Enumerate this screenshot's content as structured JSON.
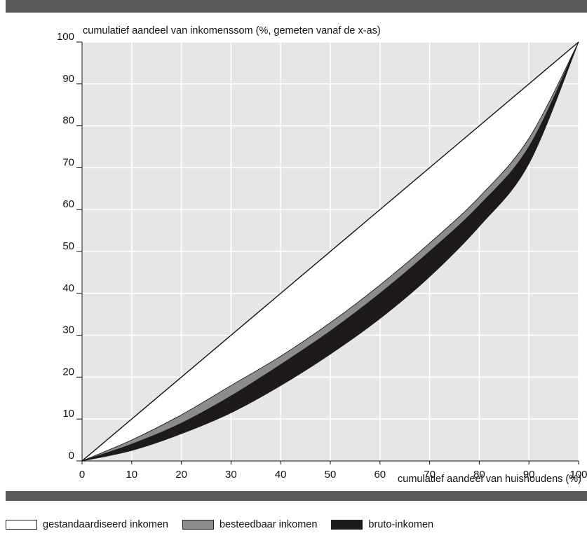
{
  "chart_data": {
    "type": "area",
    "ylabel": "cumulatief aandeel van inkomenssom (%, gemeten vanaf de x-as)",
    "xlabel": "cumulatief aandeel van huishoudens (%)",
    "xlim": [
      0,
      100
    ],
    "ylim": [
      0,
      100
    ],
    "x_ticks": [
      "0",
      "10",
      "20",
      "30",
      "40",
      "50",
      "60",
      "70",
      "80",
      "90",
      "100"
    ],
    "y_ticks": [
      "0",
      "10",
      "20",
      "30",
      "40",
      "50",
      "60",
      "70",
      "80",
      "90",
      "100"
    ],
    "grid": true,
    "legend_position": "bottom",
    "x": [
      0,
      10,
      20,
      30,
      40,
      50,
      60,
      70,
      80,
      90,
      100
    ],
    "series": [
      {
        "name": "gestandaardiseerd inkomen",
        "color": "#ffffff",
        "values": [
          0,
          5,
          11,
          18,
          25,
          33,
          42,
          52,
          63,
          77,
          100
        ]
      },
      {
        "name": "besteedbaar inkomen",
        "color": "#8c8c8c",
        "values": [
          0,
          4,
          9,
          15.5,
          23,
          31,
          40,
          50,
          61,
          75,
          100
        ]
      },
      {
        "name": "bruto-inkomen",
        "color": "#1e1a1a",
        "values": [
          0,
          2.5,
          6.5,
          11.5,
          18,
          25.5,
          34,
          44,
          56,
          71,
          100
        ]
      }
    ],
    "equality_line": [
      [
        0,
        0
      ],
      [
        100,
        100
      ]
    ]
  }
}
